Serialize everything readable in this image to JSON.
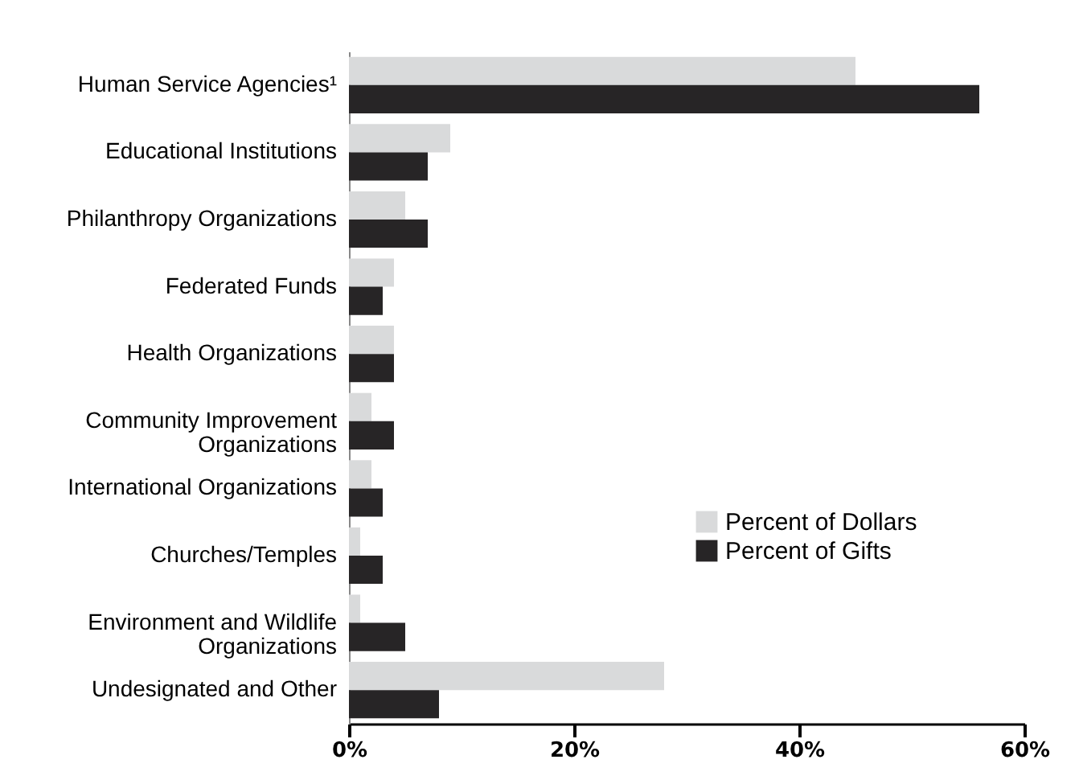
{
  "chart_data": {
    "type": "bar",
    "orientation": "horizontal",
    "categories": [
      "Human Service Agencies¹",
      "Educational Institutions",
      "Philanthropy Organizations",
      "Federated Funds",
      "Health Organizations",
      "Community Improvement\nOrganizations",
      "International Organizations",
      "Churches/Temples",
      "Environment and Wildlife\nOrganizations",
      "Undesignated and Other"
    ],
    "series": [
      {
        "name": "Percent of Dollars",
        "color": "#d9dadb",
        "values": [
          45,
          9,
          5,
          4,
          4,
          2,
          2,
          1,
          1,
          28
        ]
      },
      {
        "name": "Percent of Gifts",
        "color": "#272526",
        "values": [
          56,
          7,
          7,
          3,
          4,
          4,
          3,
          3,
          5,
          8
        ]
      }
    ],
    "xlim": [
      0,
      60
    ],
    "xticks": [
      {
        "value": 0,
        "label": "0%"
      },
      {
        "value": 20,
        "label": "20%"
      },
      {
        "value": 40,
        "label": "40%"
      },
      {
        "value": 60,
        "label": "60%"
      }
    ],
    "grid": false,
    "legend": "right"
  }
}
